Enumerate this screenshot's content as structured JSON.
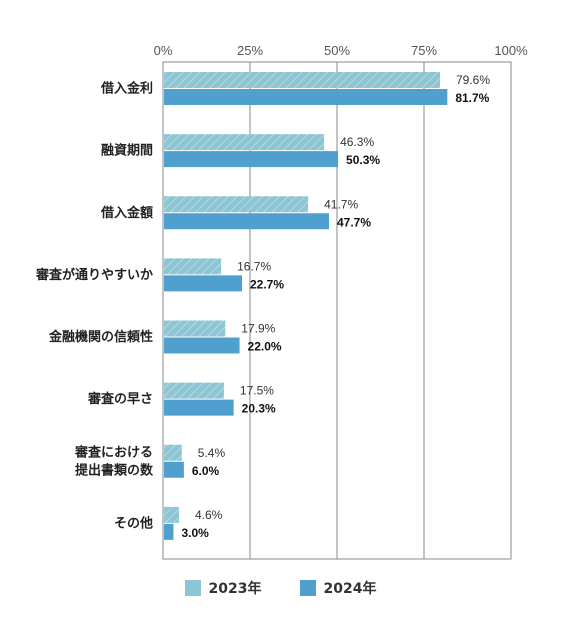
{
  "chart_data": {
    "type": "bar",
    "orientation": "horizontal",
    "categories": [
      "借入金利",
      "融資期間",
      "借入金額",
      "審査が通りやすいか",
      "金融機関の信頼性",
      "審査の早さ",
      "審査における\n提出書類の数",
      "その他"
    ],
    "series": [
      {
        "name": "2023年",
        "values": [
          79.6,
          46.3,
          41.7,
          16.7,
          17.9,
          17.5,
          5.4,
          4.6
        ],
        "color": "#8ec5d2",
        "pattern": "diagonal-hatch"
      },
      {
        "name": "2024年",
        "values": [
          81.7,
          50.3,
          47.7,
          22.7,
          22.0,
          20.3,
          6.0,
          3.0
        ],
        "color": "#4f9fcf"
      }
    ],
    "xlim": [
      0,
      100
    ],
    "xticks": [
      "0%",
      "25%",
      "50%",
      "75%",
      "100%"
    ],
    "value_suffix": "%",
    "grid": true,
    "legend_position": "bottom"
  }
}
